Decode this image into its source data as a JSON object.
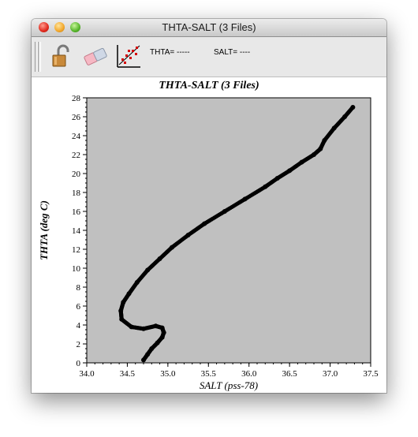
{
  "window": {
    "title": "THTA-SALT (3 Files)"
  },
  "toolbar": {
    "readout_thta": "THTA= -----",
    "readout_salt": "SALT= ----",
    "icons": [
      "unlock-icon",
      "eraser-icon",
      "scatter-plot-icon"
    ]
  },
  "chart_data": {
    "type": "scatter",
    "title": "THTA-SALT (3 Files)",
    "xlabel": "SALT (pss-78)",
    "ylabel": "THTA (deg C)",
    "xlim": [
      34.0,
      37.5
    ],
    "ylim": [
      0,
      28
    ],
    "xticks": [
      "34.0",
      "34.5",
      "35.0",
      "35.5",
      "36.0",
      "36.5",
      "37.0",
      "37.5"
    ],
    "yticks": [
      "0",
      "2",
      "4",
      "6",
      "8",
      "10",
      "12",
      "14",
      "16",
      "18",
      "20",
      "22",
      "24",
      "26",
      "28"
    ],
    "background": "#c0c0c0",
    "marker_color": "#000000",
    "series": [
      {
        "x": [
          34.7,
          34.75,
          34.8,
          34.87,
          34.93,
          34.95,
          34.93,
          34.85,
          34.7,
          34.55,
          34.43,
          34.42,
          34.45,
          34.52,
          34.62,
          34.75,
          34.9,
          35.05,
          35.25,
          35.45,
          35.7,
          35.95,
          36.2,
          36.35,
          36.5,
          36.65,
          36.8,
          36.88,
          36.93,
          37.05,
          37.18,
          37.28
        ],
        "y": [
          0.3,
          0.9,
          1.5,
          2.1,
          2.7,
          3.2,
          3.7,
          3.9,
          3.6,
          3.8,
          4.6,
          5.5,
          6.4,
          7.3,
          8.5,
          9.8,
          11.0,
          12.2,
          13.5,
          14.7,
          16.0,
          17.3,
          18.6,
          19.5,
          20.3,
          21.2,
          22.0,
          22.6,
          23.5,
          24.8,
          26.0,
          27.0
        ]
      }
    ]
  }
}
